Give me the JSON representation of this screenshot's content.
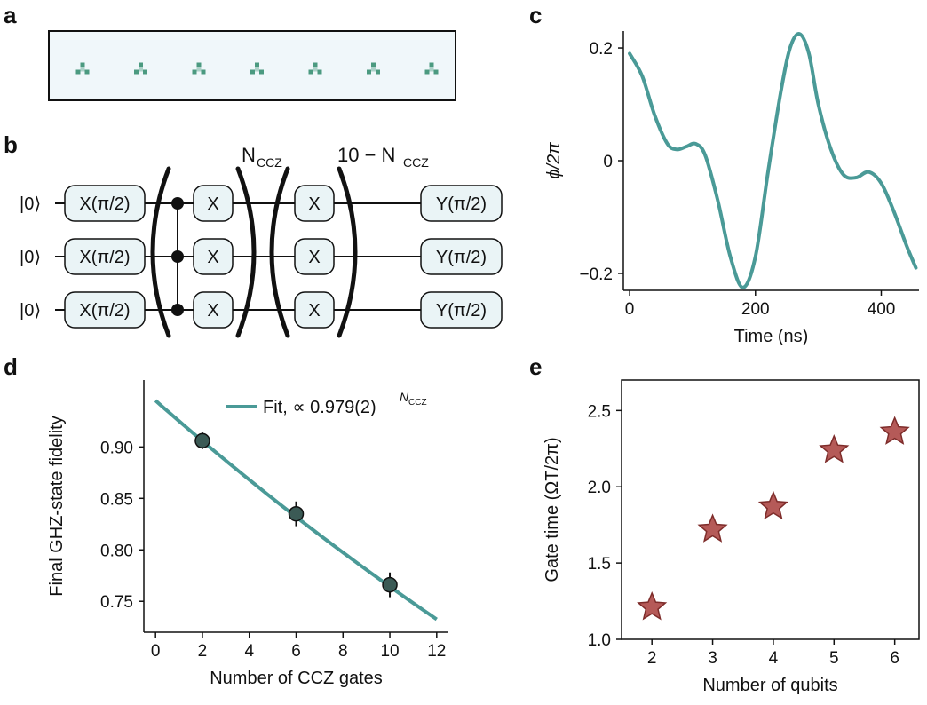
{
  "panels": {
    "a": {
      "label": "a"
    },
    "b": {
      "label": "b"
    },
    "c": {
      "label": "c"
    },
    "d": {
      "label": "d"
    },
    "e": {
      "label": "e"
    }
  },
  "circuit": {
    "ket_label": "|0⟩",
    "init_gate": "X(π/2)",
    "x_gate": "X",
    "final_gate": "Y(π/2)",
    "n_label_main": "N",
    "n_label_sub": "CCZ",
    "rest_label_main": "10 − N",
    "rest_label_sub": "CCZ",
    "num_qubits": 3
  },
  "atoms": {
    "count": 7,
    "color": "#2e8a6a"
  },
  "colors": {
    "teal": "#4a9a97",
    "marker_dark": "#3b5a55",
    "star_fill": "#b55a58",
    "star_edge": "#7e2c2a",
    "gate_fill": "#eaf4f6",
    "atom_bg": "#f0f7fa"
  },
  "chart_data": [
    {
      "id": "c",
      "type": "line",
      "xlabel": "Time (ns)",
      "ylabel": "ϕ/2π",
      "xlim": [
        -10,
        460
      ],
      "ylim": [
        -0.23,
        0.23
      ],
      "xticks": [
        0,
        200,
        400
      ],
      "yticks": [
        0.2,
        0,
        -0.2
      ],
      "ytick_labels": [
        "0.2",
        "0",
        "−0.2"
      ],
      "series": [
        {
          "name": "phase",
          "x": [
            0,
            20,
            40,
            60,
            75,
            90,
            105,
            120,
            140,
            160,
            180,
            200,
            220,
            240,
            255,
            270,
            285,
            300,
            320,
            340,
            360,
            380,
            400,
            420,
            440,
            455
          ],
          "y": [
            0.19,
            0.15,
            0.08,
            0.03,
            0.02,
            0.025,
            0.03,
            0.01,
            -0.07,
            -0.17,
            -0.225,
            -0.17,
            -0.02,
            0.12,
            0.2,
            0.225,
            0.19,
            0.1,
            0.02,
            -0.025,
            -0.03,
            -0.02,
            -0.04,
            -0.09,
            -0.15,
            -0.19
          ]
        }
      ]
    },
    {
      "id": "d",
      "type": "scatter",
      "xlabel": "Number of CCZ gates",
      "ylabel": "Final GHZ-state fidelity",
      "xlim": [
        -0.5,
        12.5
      ],
      "ylim": [
        0.72,
        0.965
      ],
      "xticks": [
        0,
        2,
        4,
        6,
        8,
        10,
        12
      ],
      "yticks": [
        0.75,
        0.8,
        0.85,
        0.9
      ],
      "ytick_labels": [
        "0.75",
        "0.80",
        "0.85",
        "0.90"
      ],
      "points": [
        {
          "x": 2,
          "y": 0.906,
          "err": 0.008
        },
        {
          "x": 6,
          "y": 0.835,
          "err": 0.012
        },
        {
          "x": 10,
          "y": 0.766,
          "err": 0.012
        }
      ],
      "fit": {
        "x0": 0,
        "y0": 0.945,
        "base": 0.979,
        "xmax": 12
      },
      "legend_prefix": "Fit, ∝ 0.979(2)",
      "legend_sup": "N",
      "legend_sup_sub": "CCZ"
    },
    {
      "id": "e",
      "type": "scatter",
      "xlabel": "Number of qubits",
      "ylabel": "Gate time (ΩT/2π)",
      "xlim": [
        1.5,
        6.4
      ],
      "ylim": [
        1.0,
        2.7
      ],
      "xticks": [
        2,
        3,
        4,
        5,
        6
      ],
      "yticks": [
        1.0,
        1.5,
        2.0,
        2.5
      ],
      "ytick_labels": [
        "1.0",
        "1.5",
        "2.0",
        "2.5"
      ],
      "x": [
        2,
        3,
        4,
        5,
        6
      ],
      "y": [
        1.21,
        1.72,
        1.87,
        2.24,
        2.36
      ]
    }
  ]
}
